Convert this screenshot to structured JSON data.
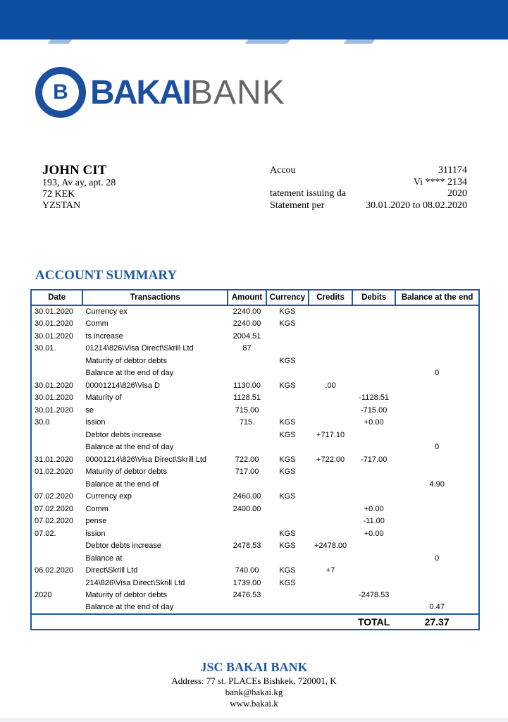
{
  "header": {
    "brand_color": "#0b4ea2"
  },
  "logo": {
    "icon_letter": "B",
    "bold": "BAKAI",
    "light": "BANK"
  },
  "client": {
    "name": "JOHN CIT",
    "address1": "193, Av   ay, apt. 28",
    "address2": "72  KEK",
    "address3": "YZSTAN"
  },
  "info": [
    {
      "label": "Accou",
      "value": "311174"
    },
    {
      "label": "",
      "value": "Vi  **** 2134"
    },
    {
      "label": "tatement issuing da",
      "value": "2020"
    },
    {
      "label": "Statement per",
      "value": "30.01.2020 to 08.02.2020"
    }
  ],
  "summary_title": "ACCOUNT SUMMARY",
  "table": {
    "headers": [
      "Date",
      "Transactions",
      "Amount",
      "Currency",
      "Credits",
      "Debits",
      "Balance at the end"
    ],
    "rows": [
      [
        "30.01.2020",
        "Currency ex",
        "2240.00",
        "KGS",
        "",
        "",
        ""
      ],
      [
        "30.01.2020",
        "Comm",
        "2240.00",
        "KGS",
        "",
        "",
        ""
      ],
      [
        "30.01.2020",
        "ts increase",
        "2004.51",
        "",
        "",
        "",
        ""
      ],
      [
        "30.01.",
        "01214\\826\\Visa Direct\\Skrill Ltd",
        "87",
        "",
        "",
        "",
        ""
      ],
      [
        "",
        "Maturity of debtor debts",
        "",
        "KGS",
        "",
        "",
        ""
      ],
      [
        "",
        "Balance at the end of day",
        "",
        "",
        "",
        "",
        "0"
      ],
      [
        "30.01.2020",
        "00001214\\826\\Visa D",
        "1130.00",
        "KGS",
        ".00",
        "",
        ""
      ],
      [
        "30.01.2020",
        "Maturity of",
        "1128.51",
        "",
        "",
        "-1128.51",
        ""
      ],
      [
        "30.01.2020",
        "se",
        "715.00",
        "",
        "",
        "-715.00",
        ""
      ],
      [
        "30.0",
        "ission",
        "715.",
        "KGS",
        "",
        "+0.00",
        ""
      ],
      [
        "",
        "Debtor debts increase",
        "",
        "KGS",
        "+717.10",
        "",
        ""
      ],
      [
        "",
        "Balance at the end of day",
        "",
        "",
        "",
        "",
        "0"
      ],
      [
        "31.01.2020",
        "00001214\\826\\Visa Direct\\Skrill Ltd",
        "722.00",
        "KGS",
        "+722.00",
        "-717.00",
        ""
      ],
      [
        "01.02.2020",
        "Maturity of debtor debts",
        "717.00",
        "KGS",
        "",
        "",
        ""
      ],
      [
        "",
        "Balance at the end of",
        "",
        "",
        "",
        "",
        "4.90"
      ],
      [
        "07.02.2020",
        "Currency exp",
        "2460.00",
        "KGS",
        "",
        "",
        ""
      ],
      [
        "07.02.2020",
        "Comm",
        "2400.00",
        "",
        "",
        "+0.00",
        ""
      ],
      [
        "07.02.2020",
        "pense",
        "",
        "",
        "",
        "-11.00",
        ""
      ],
      [
        "07.02.",
        "ission",
        "",
        "KGS",
        "",
        "+0.00",
        ""
      ],
      [
        "",
        "Debtor debts increase",
        "2478.53",
        "KGS",
        "+2478.00",
        "",
        ""
      ],
      [
        "",
        "Balance at",
        "",
        "",
        "",
        "",
        "0"
      ],
      [
        "06.02.2020",
        "Direct\\Skrill Ltd",
        "740.00",
        "KGS",
        "+7",
        "",
        ""
      ],
      [
        "",
        "214\\826\\Visa Direct\\Skrill Ltd",
        "1739.00",
        "KGS",
        "",
        "",
        ""
      ],
      [
        "2020",
        "Maturity of debtor debts",
        "2476.53",
        "",
        "",
        "-2478.53",
        ""
      ],
      [
        "",
        "Balance at the end of day",
        "",
        "",
        "",
        "",
        "0.47"
      ]
    ],
    "total_label": "TOTAL",
    "total_value": "27.37"
  },
  "footer": {
    "bank": "JSC BAKAI BANK",
    "address": "Address: 77 st. PLACEs Bishkek, 720001, K",
    "email": "bank@bakai.kg",
    "web": "www.bakai.k"
  }
}
